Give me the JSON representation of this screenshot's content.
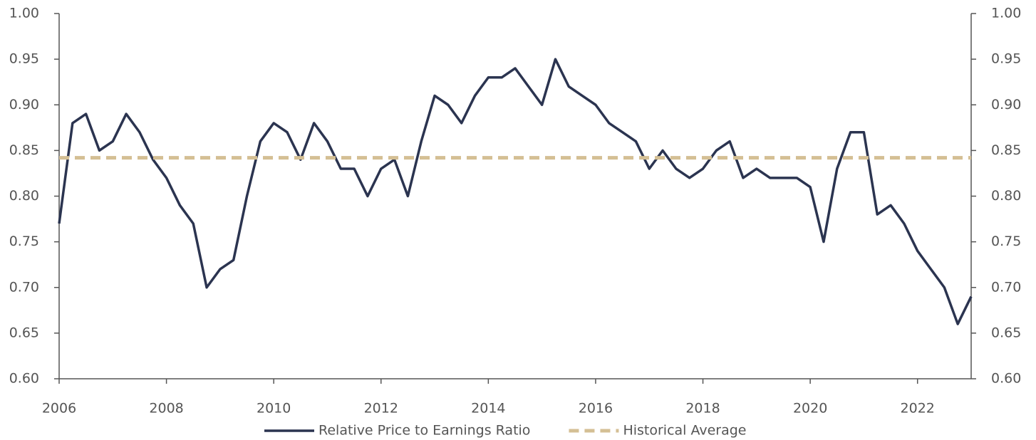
{
  "chart_data": {
    "type": "line",
    "series": [
      {
        "name": "Relative Price to Earnings Ratio",
        "color": "#2b3450",
        "style": "solid",
        "x": [
          2006,
          2006.25,
          2006.5,
          2006.75,
          2007,
          2007.25,
          2007.5,
          2007.75,
          2008,
          2008.25,
          2008.5,
          2008.75,
          2009,
          2009.25,
          2009.5,
          2009.75,
          2010,
          2010.25,
          2010.5,
          2010.75,
          2011,
          2011.25,
          2011.5,
          2011.75,
          2012,
          2012.25,
          2012.5,
          2012.75,
          2013,
          2013.25,
          2013.5,
          2013.75,
          2014,
          2014.25,
          2014.5,
          2014.75,
          2015,
          2015.25,
          2015.5,
          2015.75,
          2016,
          2016.25,
          2016.5,
          2016.75,
          2017,
          2017.25,
          2017.5,
          2017.75,
          2018,
          2018.25,
          2018.5,
          2018.75,
          2019,
          2019.25,
          2019.5,
          2019.75,
          2020,
          2020.25,
          2020.5,
          2020.75,
          2021,
          2021.25,
          2021.5,
          2021.75,
          2022,
          2022.25,
          2022.5,
          2022.75,
          2023
        ],
        "values": [
          0.77,
          0.88,
          0.89,
          0.85,
          0.86,
          0.89,
          0.87,
          0.84,
          0.82,
          0.79,
          0.77,
          0.7,
          0.72,
          0.73,
          0.8,
          0.86,
          0.88,
          0.87,
          0.84,
          0.88,
          0.86,
          0.83,
          0.83,
          0.8,
          0.83,
          0.84,
          0.8,
          0.86,
          0.91,
          0.9,
          0.88,
          0.91,
          0.93,
          0.93,
          0.94,
          0.92,
          0.9,
          0.95,
          0.92,
          0.91,
          0.9,
          0.88,
          0.87,
          0.86,
          0.83,
          0.85,
          0.83,
          0.82,
          0.83,
          0.85,
          0.86,
          0.82,
          0.83,
          0.82,
          0.82,
          0.82,
          0.81,
          0.75,
          0.83,
          0.87,
          0.87,
          0.78,
          0.79,
          0.77,
          0.74,
          0.72,
          0.7,
          0.66,
          0.69
        ]
      },
      {
        "name": "Historical Average",
        "color": "#d4bf94",
        "style": "dashed",
        "x": [
          2006,
          2023
        ],
        "values": [
          0.842,
          0.842
        ]
      }
    ],
    "xlim": [
      2006,
      2023
    ],
    "xticks": [
      2006,
      2008,
      2010,
      2012,
      2014,
      2016,
      2018,
      2020,
      2022
    ],
    "ylim": [
      0.6,
      1.0
    ],
    "yticks": [
      {
        "value": 0.6,
        "label": "0.60"
      },
      {
        "value": 0.65,
        "label": "0.65"
      },
      {
        "value": 0.7,
        "label": "0.70"
      },
      {
        "value": 0.75,
        "label": "0.75"
      },
      {
        "value": 0.8,
        "label": "0.80"
      },
      {
        "value": 0.85,
        "label": "0.85"
      },
      {
        "value": 0.9,
        "label": "0.90"
      },
      {
        "value": 0.95,
        "label": "0.95"
      },
      {
        "value": 1.0,
        "label": "1.00"
      }
    ],
    "y2lim": [
      0.6,
      1.0
    ],
    "y2ticks": [
      {
        "value": 0.6,
        "label": "0.60"
      },
      {
        "value": 0.65,
        "label": "0.65"
      },
      {
        "value": 0.7,
        "label": "0.70"
      },
      {
        "value": 0.75,
        "label": "0.75"
      },
      {
        "value": 0.8,
        "label": "0.80"
      },
      {
        "value": 0.85,
        "label": "0.85"
      },
      {
        "value": 0.9,
        "label": "0.90"
      },
      {
        "value": 0.95,
        "label": "0.95"
      },
      {
        "value": 1.0,
        "label": "1.00"
      }
    ],
    "legend": "bottom",
    "grid": false
  }
}
